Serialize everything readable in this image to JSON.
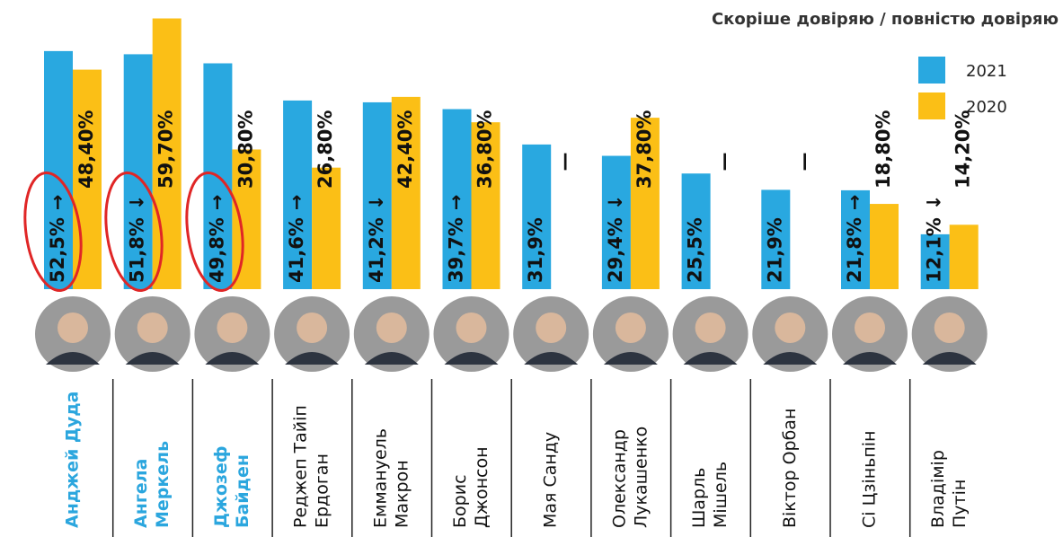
{
  "chart_data": {
    "type": "bar",
    "title": "Скоріше довіряю / повністю довіряю",
    "categories": [
      [
        "Анджей Дуда"
      ],
      [
        "Ангела",
        "Меркель"
      ],
      [
        "Джозеф",
        "Байден"
      ],
      [
        "Реджеп Тайіп",
        "Ердоган"
      ],
      [
        "Еммануель",
        "Макрон"
      ],
      [
        "Борис",
        "Джонсон"
      ],
      [
        "Мая Санду"
      ],
      [
        "Олександр",
        "Лукашенко"
      ],
      [
        "Шарль",
        "Мішель"
      ],
      [
        "Віктор Орбан"
      ],
      [
        "Сі Цзіньпін"
      ],
      [
        "Владімір",
        "Путін"
      ]
    ],
    "highlighted": [
      0,
      1,
      2
    ],
    "highlight_color": "#2ba6de",
    "series": [
      {
        "name": "2021",
        "color": "#29a8e0",
        "values": [
          52.5,
          51.8,
          49.8,
          41.6,
          41.2,
          39.7,
          31.9,
          29.4,
          25.5,
          21.9,
          21.8,
          12.1
        ],
        "value_labels": [
          "52,5%",
          "51,8%",
          "49,8%",
          "41,6%",
          "41,2%",
          "39,7%",
          "31,9%",
          "29,4%",
          "25,5%",
          "21,9%",
          "21,8%",
          "12,1%"
        ],
        "trend": [
          "→",
          "↓",
          "→",
          "→",
          "↓",
          "→",
          null,
          "↓",
          null,
          null,
          "→",
          "↓"
        ]
      },
      {
        "name": "2020",
        "color": "#fbbf16",
        "values": [
          48.4,
          59.7,
          30.8,
          26.8,
          42.4,
          36.8,
          null,
          37.8,
          null,
          null,
          18.8,
          14.2
        ],
        "value_labels": [
          "48,40%",
          "59,70%",
          "30,80%",
          "26,80%",
          "42,40%",
          "36,80%",
          "—",
          "37,80%",
          "—",
          "—",
          "18,80%",
          "14,20%"
        ]
      }
    ],
    "ylim": [
      0,
      60
    ]
  }
}
